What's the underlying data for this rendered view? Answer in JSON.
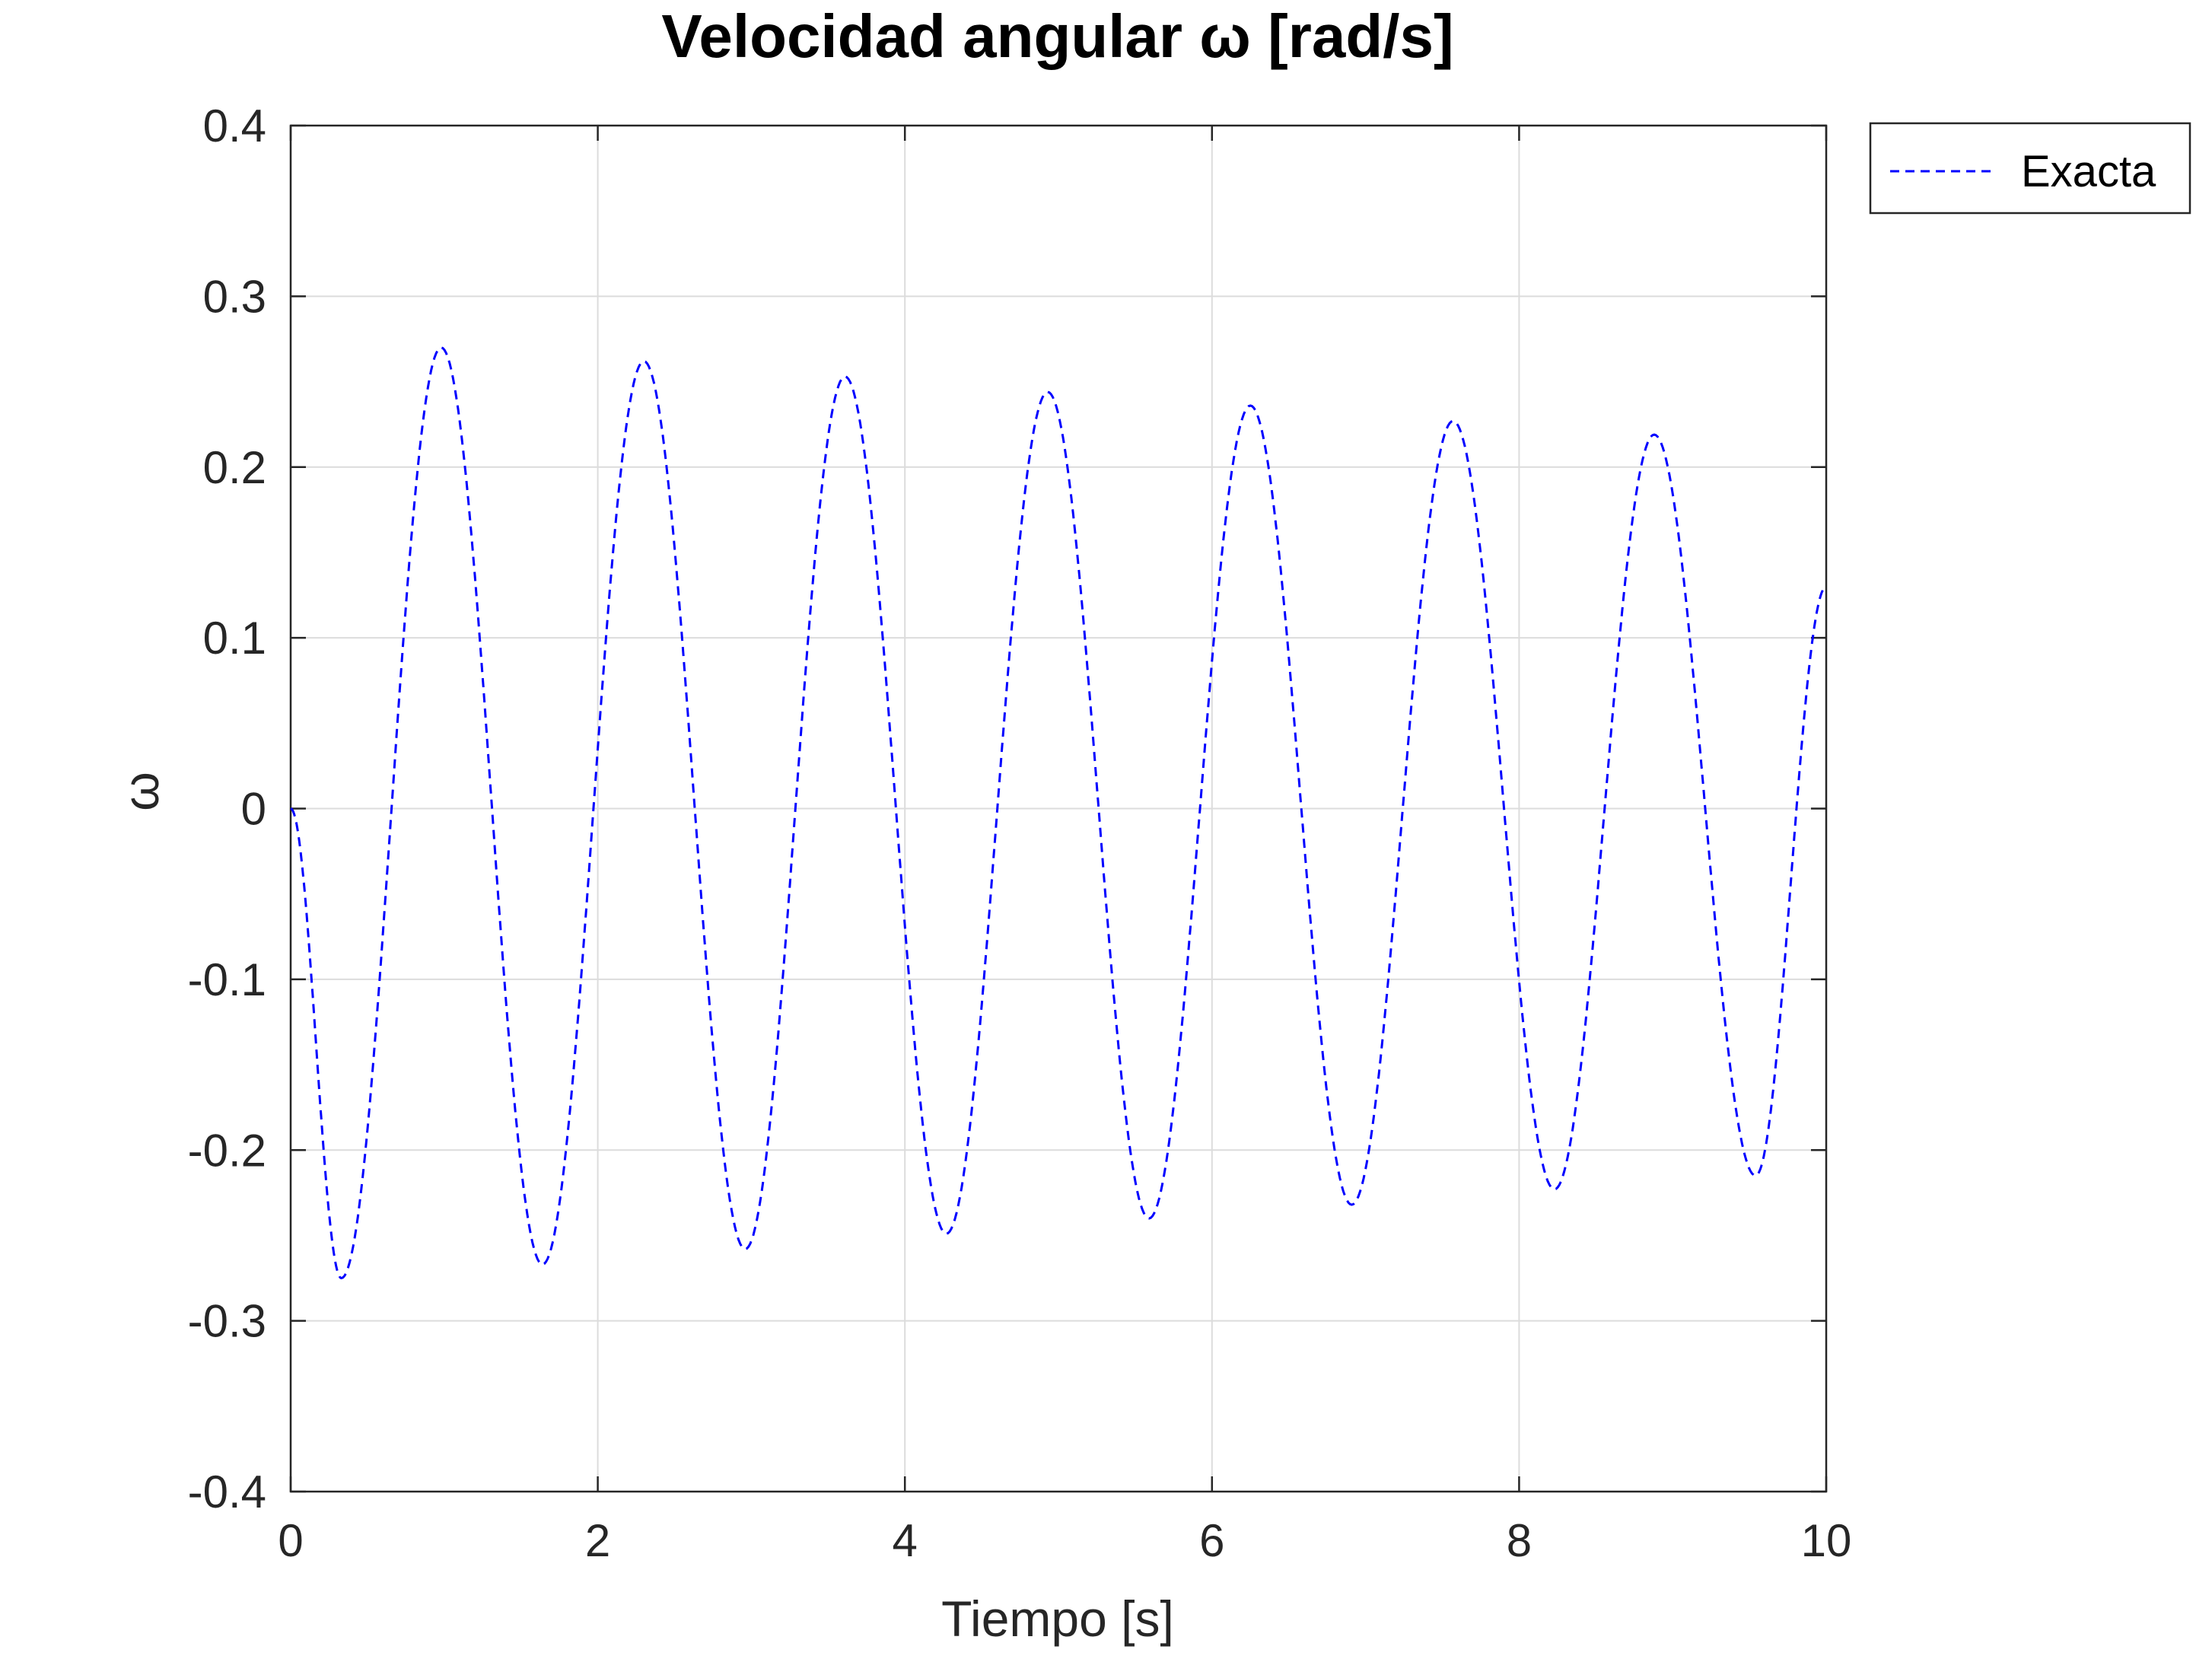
{
  "chart_data": {
    "type": "line",
    "title": "Velocidad angular ω [rad/s]",
    "xlabel": "Tiempo [s]",
    "ylabel": "ω",
    "xlim": [
      0,
      10
    ],
    "ylim": [
      -0.4,
      0.4
    ],
    "xticks": [
      0,
      2,
      4,
      6,
      8,
      10
    ],
    "xtick_labels": [
      "0",
      "2",
      "4",
      "6",
      "8",
      "10"
    ],
    "yticks": [
      -0.4,
      -0.3,
      -0.2,
      -0.1,
      0,
      0.1,
      0.2,
      0.3,
      0.4
    ],
    "ytick_labels": [
      "-0.4",
      "-0.3",
      "-0.2",
      "-0.1",
      "0",
      "0.1",
      "0.2",
      "0.3",
      "0.4"
    ],
    "grid": true,
    "legend_position": "outside-top-right",
    "series": [
      {
        "name": "Exacta",
        "color": "#0000ff",
        "line_style": "dashed",
        "points": [
          [
            0,
            0
          ],
          [
            0.33,
            -0.275
          ],
          [
            0.98,
            0.27
          ],
          [
            1.64,
            -0.267
          ],
          [
            2.3,
            0.262
          ],
          [
            2.96,
            -0.258
          ],
          [
            3.61,
            0.253
          ],
          [
            4.27,
            -0.249
          ],
          [
            4.93,
            0.244
          ],
          [
            5.59,
            -0.24
          ],
          [
            6.25,
            0.236
          ],
          [
            6.91,
            -0.232
          ],
          [
            7.57,
            0.227
          ],
          [
            8.23,
            -0.223
          ],
          [
            8.88,
            0.219
          ],
          [
            9.54,
            -0.215
          ],
          [
            10.0,
            0.13
          ]
        ]
      }
    ]
  }
}
